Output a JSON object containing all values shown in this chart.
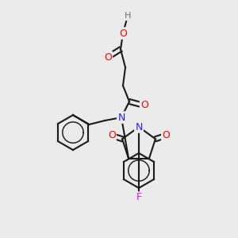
{
  "background_color": "#EBEBEB",
  "bond_color": "#1A1A1A",
  "bond_width": 1.5,
  "atom_colors": {
    "N": "#2020FF",
    "O": "#FF0000",
    "F": "#FF00FF",
    "H": "#4A7A7A",
    "C": "#1A1A1A"
  },
  "font_size_atom": 9,
  "title": ""
}
